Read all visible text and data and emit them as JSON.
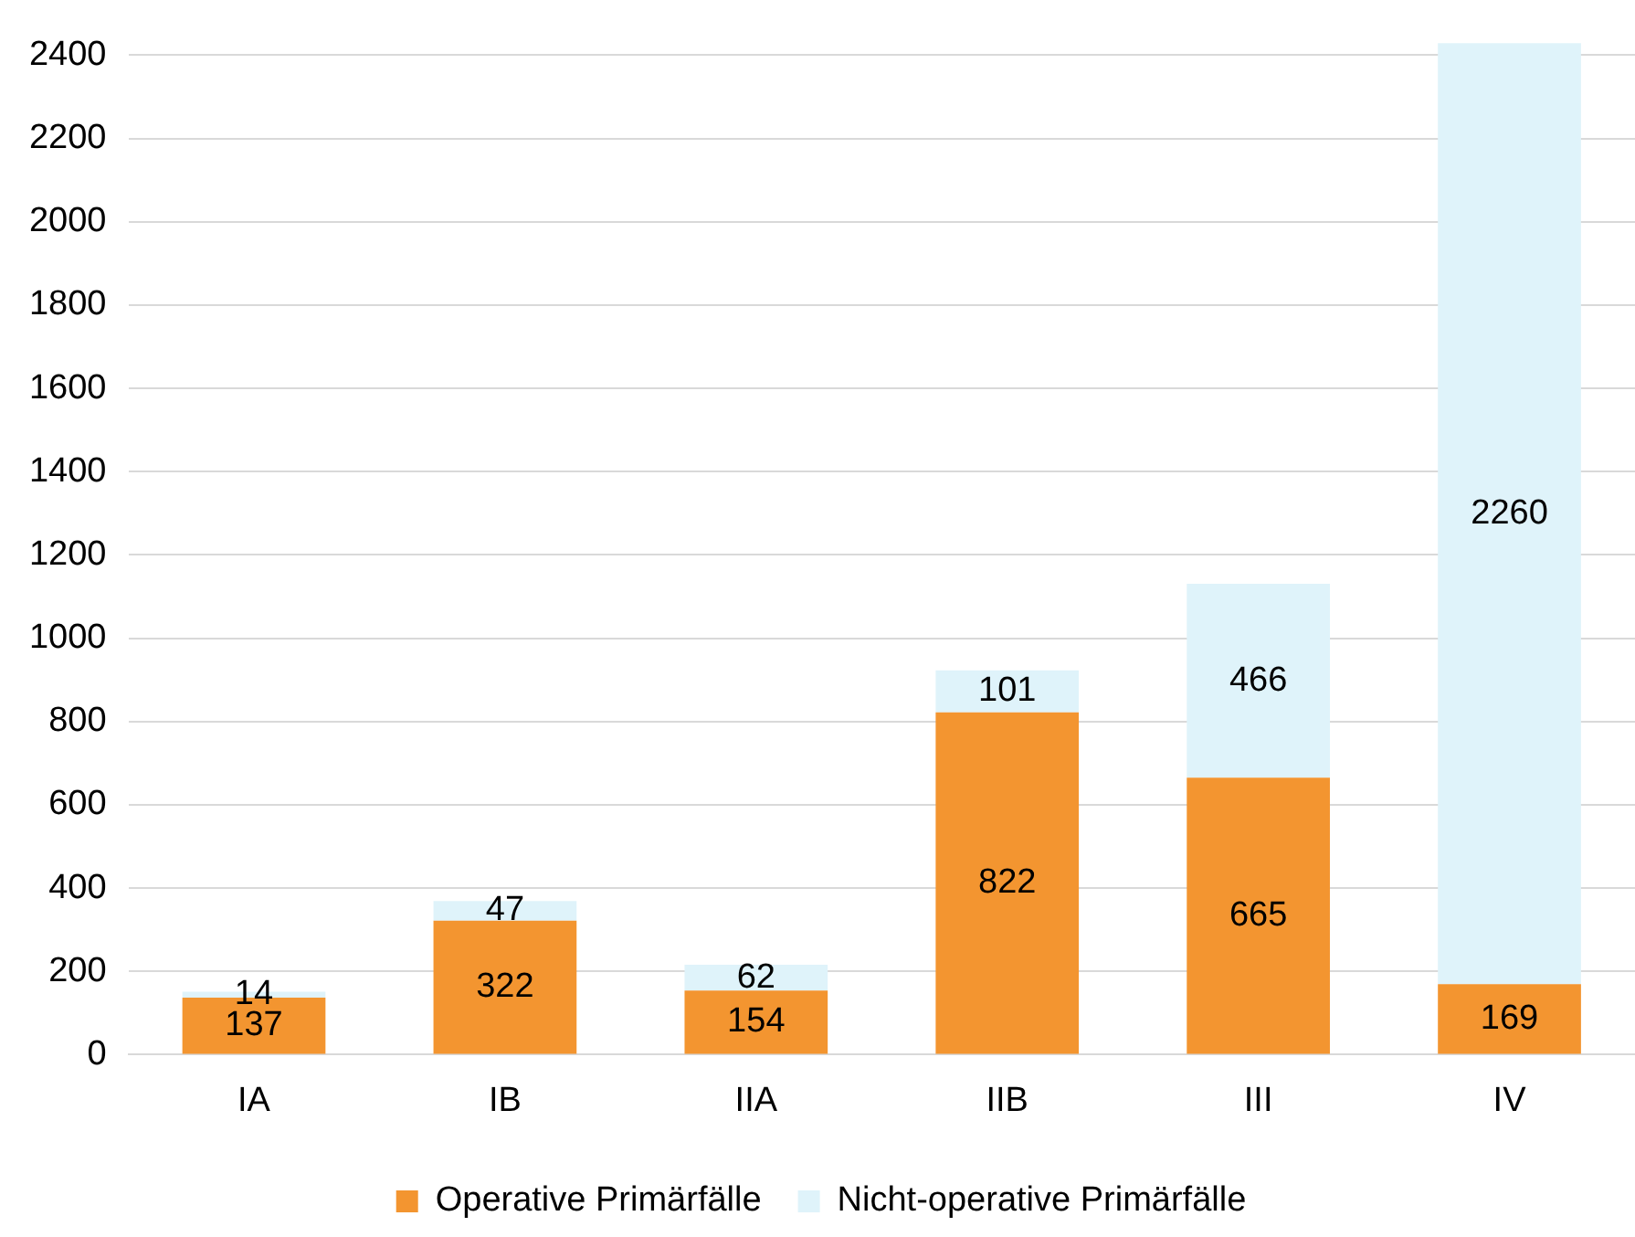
{
  "chart_data": {
    "type": "bar",
    "stacked": true,
    "categories": [
      "IA",
      "IB",
      "IIA",
      "IIB",
      "III",
      "IV"
    ],
    "series": [
      {
        "name": "Operative Primärfälle",
        "color": "#f39530",
        "values": [
          137,
          322,
          154,
          822,
          665,
          169
        ]
      },
      {
        "name": "Nicht-operative Primärfälle",
        "color": "#dff3fa",
        "values": [
          14,
          47,
          62,
          101,
          466,
          2260
        ]
      }
    ],
    "ylim": [
      0,
      2430
    ],
    "yticks": [
      0,
      200,
      400,
      600,
      800,
      1000,
      1200,
      1400,
      1600,
      1800,
      2000,
      2200,
      2400
    ],
    "grid": "y",
    "legend": "bottom",
    "data_labels": true
  }
}
